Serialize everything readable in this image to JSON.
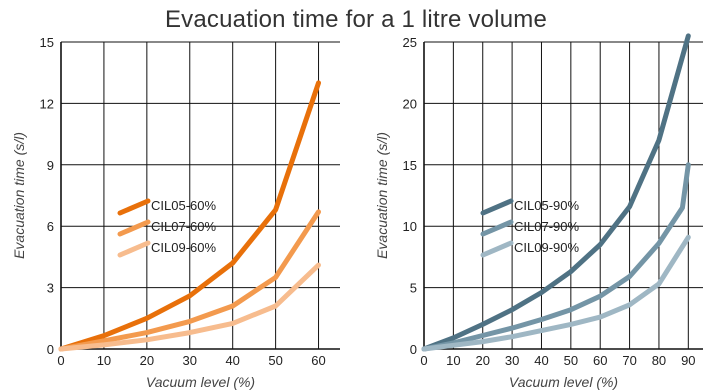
{
  "title": "Evacuation time for a 1 litre volume",
  "chart_data": [
    {
      "type": "line",
      "ylabel": "Evacuation time (s/l)",
      "xlabel": "Vacuum level (%)",
      "xlim": [
        0,
        65
      ],
      "ylim": [
        0,
        15
      ],
      "x_ticks": [
        0,
        10,
        20,
        30,
        40,
        50,
        60
      ],
      "y_ticks": [
        0,
        3,
        6,
        9,
        12,
        15
      ],
      "grid": true,
      "legend_position": "center-left",
      "series": [
        {
          "name": "CIL05-60%",
          "color": "#E8700A",
          "x": [
            0,
            10,
            20,
            30,
            40,
            50,
            60
          ],
          "y": [
            0,
            0.65,
            1.5,
            2.6,
            4.2,
            6.8,
            13.0
          ]
        },
        {
          "name": "CIL07-60%",
          "color": "#F39A4E",
          "x": [
            0,
            10,
            20,
            30,
            40,
            50,
            60
          ],
          "y": [
            0,
            0.4,
            0.8,
            1.35,
            2.1,
            3.5,
            6.7
          ]
        },
        {
          "name": "CIL09-60%",
          "color": "#F7BC8E",
          "x": [
            0,
            10,
            20,
            30,
            40,
            50,
            60
          ],
          "y": [
            0,
            0.2,
            0.45,
            0.8,
            1.25,
            2.1,
            4.1
          ]
        }
      ]
    },
    {
      "type": "line",
      "ylabel": "Evacuation time (s/l)",
      "xlabel": "Vacuum level (%)",
      "xlim": [
        0,
        95
      ],
      "ylim": [
        0,
        25
      ],
      "x_ticks": [
        0,
        10,
        20,
        30,
        40,
        50,
        60,
        70,
        80,
        90
      ],
      "y_ticks": [
        0,
        5,
        10,
        15,
        20,
        25
      ],
      "grid": true,
      "legend_position": "center-left",
      "series": [
        {
          "name": "CIL05-90%",
          "color": "#4F7284",
          "x": [
            0,
            10,
            20,
            30,
            40,
            50,
            60,
            70,
            80,
            90
          ],
          "y": [
            0,
            0.9,
            2.0,
            3.2,
            4.6,
            6.3,
            8.5,
            11.6,
            17.0,
            25.5
          ]
        },
        {
          "name": "CIL07-90%",
          "color": "#7495A6",
          "x": [
            0,
            10,
            20,
            30,
            40,
            50,
            60,
            70,
            80,
            88,
            90
          ],
          "y": [
            0,
            0.5,
            1.1,
            1.7,
            2.4,
            3.2,
            4.3,
            5.9,
            8.6,
            11.5,
            15.0
          ]
        },
        {
          "name": "CIL09-90%",
          "color": "#9FB7C4",
          "x": [
            0,
            10,
            20,
            30,
            40,
            50,
            60,
            70,
            80,
            90
          ],
          "y": [
            0,
            0.3,
            0.6,
            1.0,
            1.5,
            2.0,
            2.6,
            3.6,
            5.3,
            9.1
          ]
        }
      ]
    }
  ]
}
